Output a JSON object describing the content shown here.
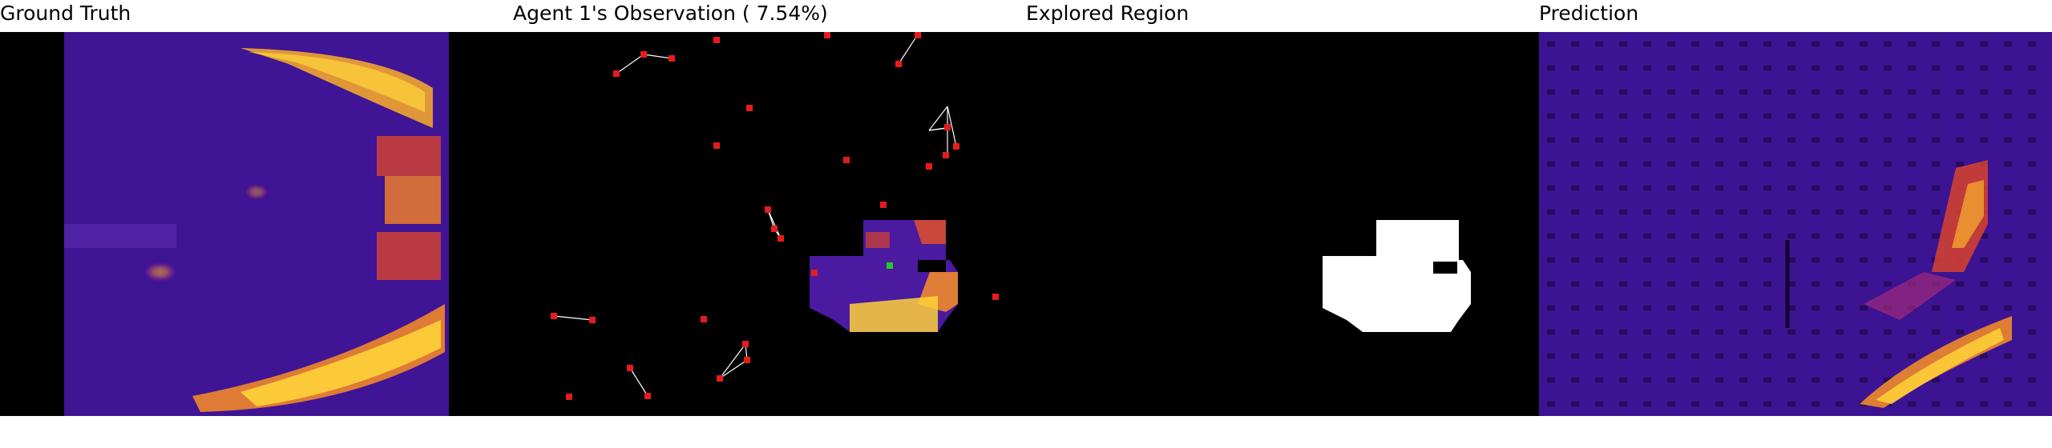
{
  "titles": {
    "ground_truth": "Ground Truth",
    "observation": "Agent 1's Observation ( 7.54%)",
    "explored": "Explored Region",
    "prediction": "Prediction"
  },
  "colors": {
    "background": "#000000",
    "heat_low": "#2a0b6b",
    "heat_mid": "#5b1fa8",
    "heat_warm": "#e0502a",
    "heat_hot": "#ffd23a",
    "agent_marker": "#e51c1c",
    "self_marker": "#22cc22",
    "link_line": "#ffffff",
    "explored_fill": "#ffffff"
  }
}
